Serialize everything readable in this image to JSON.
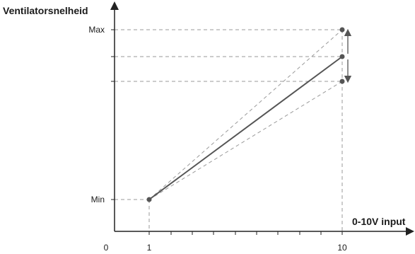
{
  "labels": {
    "y_axis_title": "Ventilatorsnelheid",
    "x_axis_title": "0-10V input",
    "y_max": "Max",
    "y_min": "Min",
    "x_zero": "0",
    "x_one": "1",
    "x_ten": "10"
  },
  "colors": {
    "axis": "#222222",
    "main_line": "#555555",
    "dashed": "#9a9a9a",
    "point": "#555555",
    "arrow": "#555555"
  },
  "chart_data": {
    "type": "line",
    "title": "",
    "xlabel": "0-10V input",
    "ylabel": "Ventilatorsnelheid",
    "x_ticks": [
      "0",
      "1",
      "10"
    ],
    "y_ticks": [
      "Min",
      "Max"
    ],
    "series": [
      {
        "values": [
          [
            1,
            "Min"
          ],
          [
            10,
            "Nominal"
          ]
        ]
      },
      {
        "values": [
          [
            1,
            "Min"
          ],
          [
            10,
            "Max"
          ]
        ]
      },
      {
        "values": [
          [
            1,
            "Min"
          ],
          [
            10,
            "Lower"
          ]
        ]
      }
    ],
    "annotations": [
      "adjustment range arrows at 10V between upper and lower end values"
    ]
  }
}
